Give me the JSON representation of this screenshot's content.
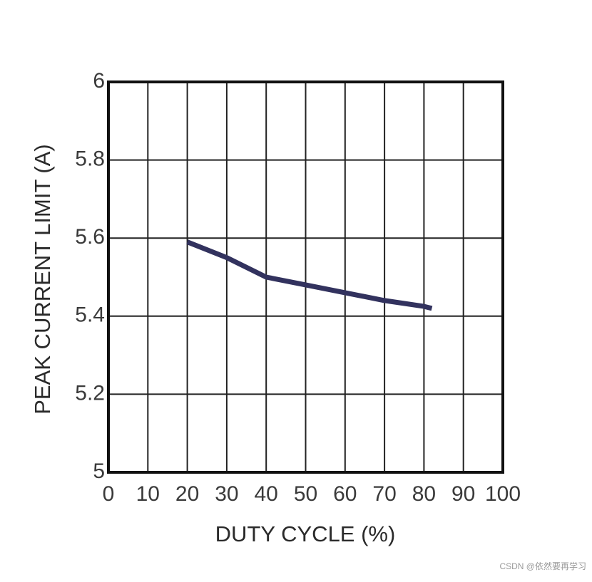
{
  "chart_data": {
    "type": "line",
    "xlabel": "DUTY CYCLE (%)",
    "ylabel": "PEAK CURRENT LIMIT (A)",
    "x": [
      20,
      30,
      40,
      50,
      60,
      70,
      80,
      82
    ],
    "values": [
      5.59,
      5.55,
      5.5,
      5.48,
      5.46,
      5.44,
      5.425,
      5.42
    ],
    "color": "#32325e",
    "xlim": [
      0,
      100
    ],
    "xticks": [
      0,
      10,
      20,
      30,
      40,
      50,
      60,
      70,
      80,
      90,
      100
    ],
    "ylim": [
      5,
      6
    ],
    "yticks": [
      5,
      5.2,
      5.4,
      5.6,
      5.8,
      6
    ],
    "grid": true
  },
  "watermark": "CSDN @依然要再学习"
}
